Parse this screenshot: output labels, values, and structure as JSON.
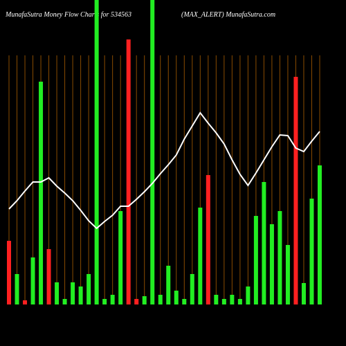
{
  "chart_data": {
    "type": "bar",
    "title": "MunafaSutra  Money Flow  Charts for 534563",
    "subtitle": "(MAX_ALERT) MunafaSutra.com",
    "categories": [
      null,
      null,
      null,
      null,
      null,
      null,
      null,
      null,
      null,
      null,
      null,
      null,
      null,
      null,
      null,
      null,
      null,
      null,
      null,
      null,
      null,
      null,
      null,
      null,
      null,
      null,
      null,
      null,
      null,
      null,
      null,
      null,
      null,
      null,
      null,
      null,
      null,
      null,
      null,
      null
    ],
    "values": [
      92,
      44,
      6,
      68,
      322,
      80,
      32,
      8,
      32,
      26,
      44,
      440,
      8,
      14,
      135,
      383,
      8,
      12,
      440,
      14,
      56,
      20,
      8,
      44,
      140,
      187,
      14,
      8,
      14,
      8,
      26,
      128,
      177,
      116,
      135,
      86,
      329,
      31,
      153,
      201
    ],
    "colors": [
      "#ff2020",
      "#22ee22",
      "#ff2020",
      "#22ee22",
      "#22ee22",
      "#ff2020",
      "#22ee22",
      "#22ee22",
      "#22ee22",
      "#22ee22",
      "#22ee22",
      "#22ee22",
      "#22ee22",
      "#22ee22",
      "#22ee22",
      "#ff2020",
      "#ff2020",
      "#22ee22",
      "#22ee22",
      "#22ee22",
      "#22ee22",
      "#22ee22",
      "#22ee22",
      "#22ee22",
      "#22ee22",
      "#ff2020",
      "#22ee22",
      "#22ee22",
      "#22ee22",
      "#22ee22",
      "#22ee22",
      "#22ee22",
      "#22ee22",
      "#22ee22",
      "#22ee22",
      "#22ee22",
      "#ff2020",
      "#22ee22",
      "#22ee22",
      "#22ee22"
    ],
    "line": {
      "color": "#ffffff",
      "values": [
        138,
        150,
        164,
        177,
        177,
        183,
        171,
        161,
        150,
        136,
        121,
        110,
        120,
        129,
        142,
        142,
        152,
        163,
        175,
        189,
        202,
        216,
        239,
        258,
        277,
        262,
        248,
        232,
        209,
        188,
        172,
        190,
        209,
        228,
        245,
        244,
        226,
        221,
        236,
        250
      ]
    },
    "ylim": [
      0,
      440
    ]
  }
}
